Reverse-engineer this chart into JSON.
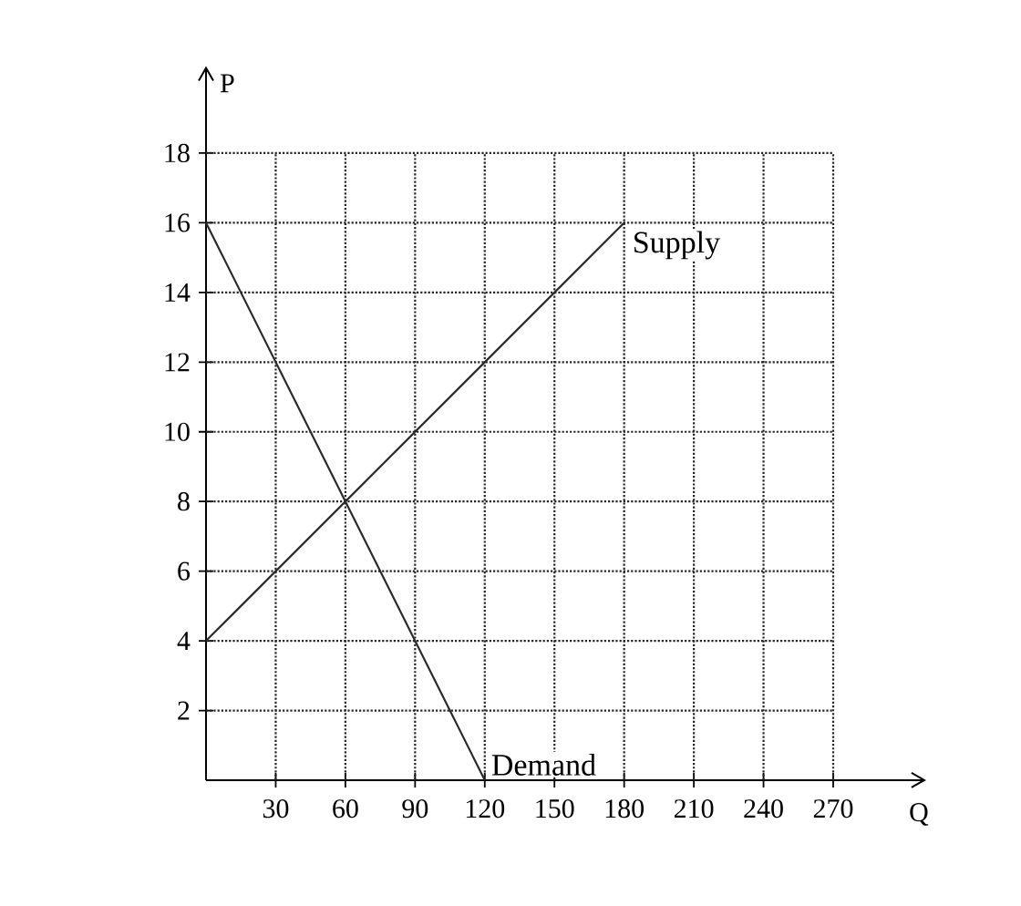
{
  "chart_data": {
    "type": "line",
    "xlabel": "Q",
    "ylabel": "P",
    "xlim": [
      0,
      310
    ],
    "ylim": [
      0,
      20.5
    ],
    "xticks": [
      30,
      60,
      90,
      120,
      150,
      180,
      210,
      240,
      270
    ],
    "yticks": [
      2,
      4,
      6,
      8,
      10,
      12,
      14,
      16,
      18
    ],
    "grid": true,
    "marker": "none",
    "line_style": "solid",
    "series": [
      {
        "name": "Supply",
        "color": "#2b2b2b",
        "x": [
          0,
          180
        ],
        "values": [
          4,
          16
        ]
      },
      {
        "name": "Demand",
        "color": "#2b2b2b",
        "x": [
          0,
          120
        ],
        "values": [
          16,
          0
        ]
      }
    ]
  }
}
